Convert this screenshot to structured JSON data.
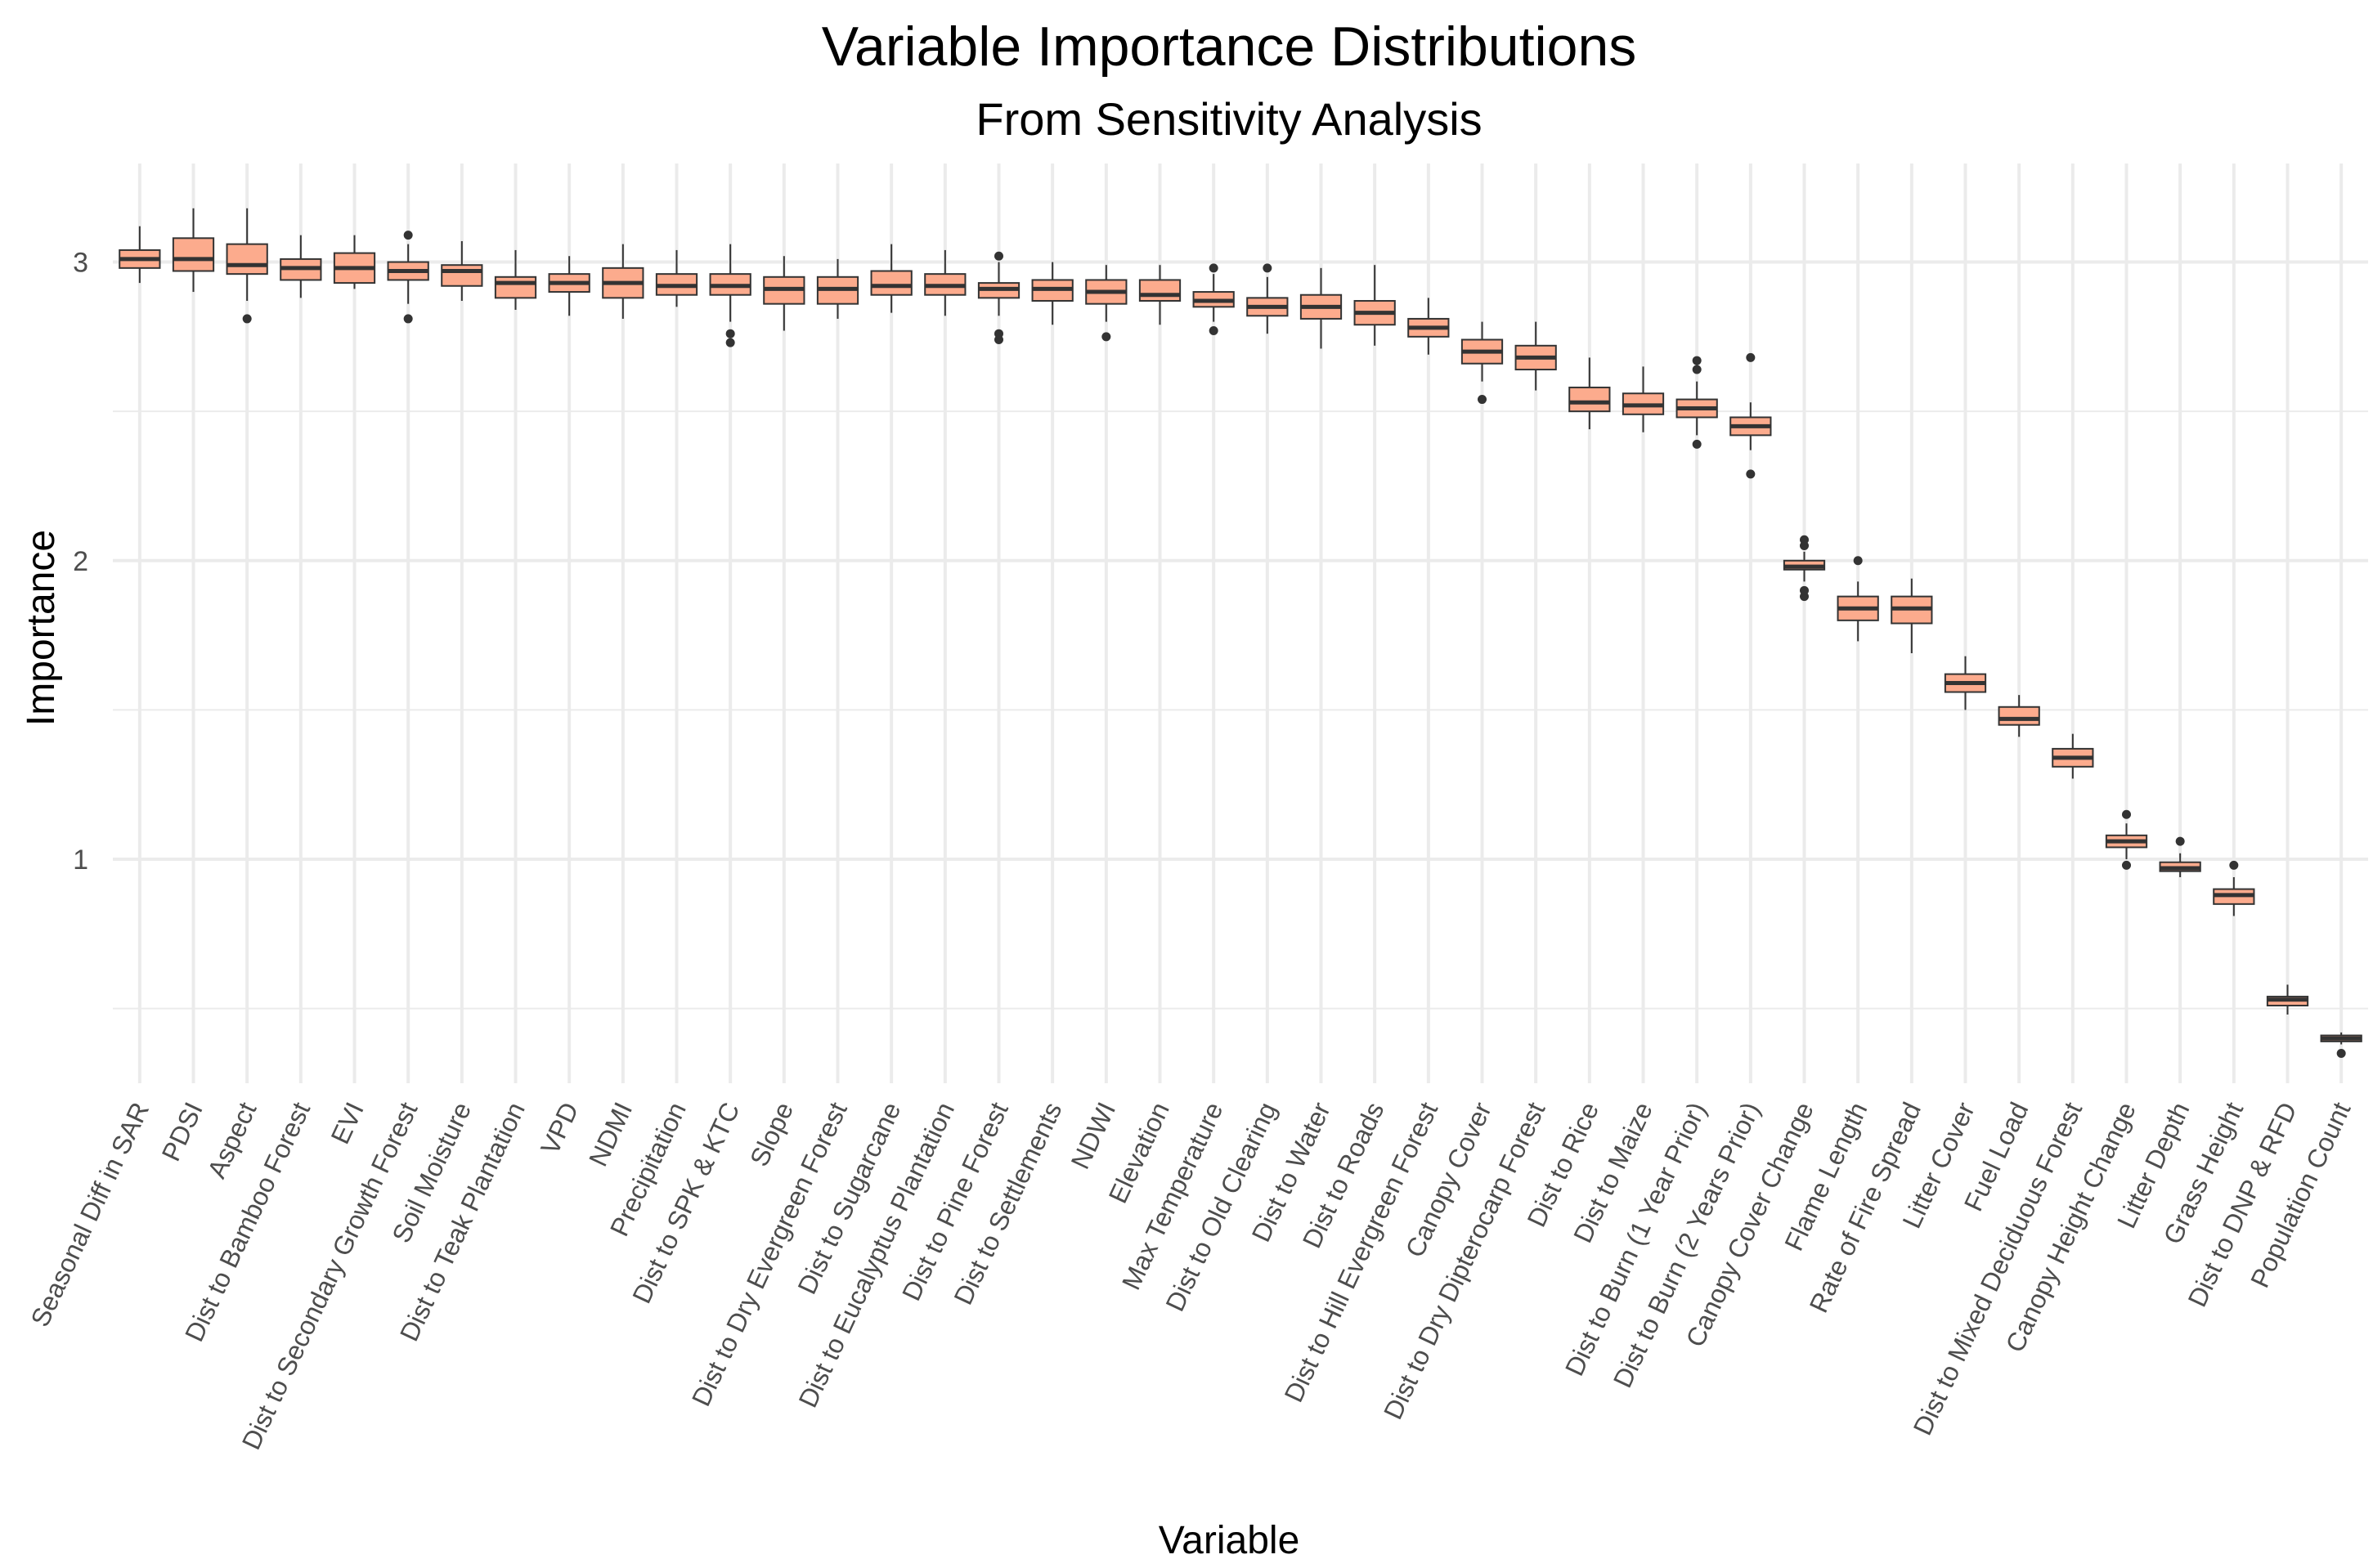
{
  "chart_data": {
    "type": "boxplot",
    "title": "Variable Importance Distributions",
    "subtitle": "From Sensitivity Analysis",
    "xlabel": "Variable",
    "ylabel": "Importance",
    "ylim": [
      0.25,
      3.33
    ],
    "yticks": [
      1,
      2,
      3
    ],
    "grid": true,
    "colors": {
      "box_fill": "#fcab8d",
      "box_stroke": "#333333",
      "grid": "#ebebeb",
      "median": "#333333"
    },
    "categories": [
      "Seasonal Diff in SAR",
      "PDSI",
      "Aspect",
      "Dist to Bamboo Forest",
      "EVI",
      "Dist to Secondary Growth Forest",
      "Soil Moisture",
      "Dist to Teak Plantation",
      "VPD",
      "NDMI",
      "Precipitation",
      "Dist to SPK & KTC",
      "Slope",
      "Dist to Dry Evergreen Forest",
      "Dist to Sugarcane",
      "Dist to Eucalyptus Plantation",
      "Dist to Pine Forest",
      "Dist to Settlements",
      "NDWI",
      "Elevation",
      "Max Temperature",
      "Dist to Old Clearing",
      "Dist to Water",
      "Dist to Roads",
      "Dist to Hill Evergreen Forest",
      "Canopy Cover",
      "Dist to Dry Dipterocarp Forest",
      "Dist to Rice",
      "Dist to Maize",
      "Dist to Burn (1 Year Prior)",
      "Dist to Burn (2 Years Prior)",
      "Canopy Cover Change",
      "Flame Length",
      "Rate of Fire Spread",
      "Litter Cover",
      "Fuel Load",
      "Dist to Mixed Deciduous Forest",
      "Canopy Height Change",
      "Litter Depth",
      "Grass Height",
      "Dist to DNP & RFD",
      "Population Count"
    ],
    "boxes": [
      {
        "min": 2.93,
        "q1": 2.98,
        "median": 3.01,
        "q3": 3.04,
        "max": 3.12,
        "outliers": []
      },
      {
        "min": 2.9,
        "q1": 2.97,
        "median": 3.01,
        "q3": 3.08,
        "max": 3.18,
        "outliers": []
      },
      {
        "min": 2.87,
        "q1": 2.96,
        "median": 2.99,
        "q3": 3.06,
        "max": 3.18,
        "outliers": [
          2.81
        ]
      },
      {
        "min": 2.88,
        "q1": 2.94,
        "median": 2.98,
        "q3": 3.01,
        "max": 3.09,
        "outliers": []
      },
      {
        "min": 2.91,
        "q1": 2.93,
        "median": 2.98,
        "q3": 3.03,
        "max": 3.09,
        "outliers": []
      },
      {
        "min": 2.86,
        "q1": 2.94,
        "median": 2.97,
        "q3": 3.0,
        "max": 3.06,
        "outliers": [
          2.81,
          3.09
        ]
      },
      {
        "min": 2.87,
        "q1": 2.92,
        "median": 2.97,
        "q3": 2.99,
        "max": 3.07,
        "outliers": []
      },
      {
        "min": 2.84,
        "q1": 2.88,
        "median": 2.93,
        "q3": 2.95,
        "max": 3.04,
        "outliers": []
      },
      {
        "min": 2.82,
        "q1": 2.9,
        "median": 2.93,
        "q3": 2.96,
        "max": 3.02,
        "outliers": []
      },
      {
        "min": 2.81,
        "q1": 2.88,
        "median": 2.93,
        "q3": 2.98,
        "max": 3.06,
        "outliers": []
      },
      {
        "min": 2.85,
        "q1": 2.89,
        "median": 2.92,
        "q3": 2.96,
        "max": 3.04,
        "outliers": []
      },
      {
        "min": 2.8,
        "q1": 2.89,
        "median": 2.92,
        "q3": 2.96,
        "max": 3.06,
        "outliers": [
          2.73,
          2.76
        ]
      },
      {
        "min": 2.77,
        "q1": 2.86,
        "median": 2.91,
        "q3": 2.95,
        "max": 3.02,
        "outliers": []
      },
      {
        "min": 2.81,
        "q1": 2.86,
        "median": 2.91,
        "q3": 2.95,
        "max": 3.01,
        "outliers": []
      },
      {
        "min": 2.83,
        "q1": 2.89,
        "median": 2.92,
        "q3": 2.97,
        "max": 3.06,
        "outliers": []
      },
      {
        "min": 2.82,
        "q1": 2.89,
        "median": 2.92,
        "q3": 2.96,
        "max": 3.04,
        "outliers": []
      },
      {
        "min": 2.82,
        "q1": 2.88,
        "median": 2.91,
        "q3": 2.93,
        "max": 3.0,
        "outliers": [
          2.74,
          2.76,
          3.02
        ]
      },
      {
        "min": 2.79,
        "q1": 2.87,
        "median": 2.91,
        "q3": 2.94,
        "max": 3.0,
        "outliers": []
      },
      {
        "min": 2.8,
        "q1": 2.86,
        "median": 2.9,
        "q3": 2.94,
        "max": 2.99,
        "outliers": [
          2.75
        ]
      },
      {
        "min": 2.79,
        "q1": 2.87,
        "median": 2.89,
        "q3": 2.94,
        "max": 2.99,
        "outliers": []
      },
      {
        "min": 2.8,
        "q1": 2.85,
        "median": 2.87,
        "q3": 2.9,
        "max": 2.96,
        "outliers": [
          2.77,
          2.98
        ]
      },
      {
        "min": 2.76,
        "q1": 2.82,
        "median": 2.85,
        "q3": 2.88,
        "max": 2.95,
        "outliers": [
          2.98
        ]
      },
      {
        "min": 2.71,
        "q1": 2.81,
        "median": 2.85,
        "q3": 2.89,
        "max": 2.98,
        "outliers": []
      },
      {
        "min": 2.72,
        "q1": 2.79,
        "median": 2.83,
        "q3": 2.87,
        "max": 2.99,
        "outliers": []
      },
      {
        "min": 2.69,
        "q1": 2.75,
        "median": 2.78,
        "q3": 2.81,
        "max": 2.88,
        "outliers": []
      },
      {
        "min": 2.6,
        "q1": 2.66,
        "median": 2.7,
        "q3": 2.74,
        "max": 2.8,
        "outliers": [
          2.54
        ]
      },
      {
        "min": 2.57,
        "q1": 2.64,
        "median": 2.68,
        "q3": 2.72,
        "max": 2.8,
        "outliers": []
      },
      {
        "min": 2.44,
        "q1": 2.5,
        "median": 2.53,
        "q3": 2.58,
        "max": 2.68,
        "outliers": []
      },
      {
        "min": 2.43,
        "q1": 2.49,
        "median": 2.52,
        "q3": 2.56,
        "max": 2.65,
        "outliers": []
      },
      {
        "min": 2.42,
        "q1": 2.48,
        "median": 2.51,
        "q3": 2.54,
        "max": 2.6,
        "outliers": [
          2.39,
          2.64,
          2.67
        ]
      },
      {
        "min": 2.37,
        "q1": 2.42,
        "median": 2.45,
        "q3": 2.48,
        "max": 2.53,
        "outliers": [
          2.29,
          2.68
        ]
      },
      {
        "min": 1.93,
        "q1": 1.97,
        "median": 1.98,
        "q3": 2.0,
        "max": 2.03,
        "outliers": [
          1.88,
          1.9,
          2.05,
          2.07
        ]
      },
      {
        "min": 1.73,
        "q1": 1.8,
        "median": 1.84,
        "q3": 1.88,
        "max": 1.93,
        "outliers": [
          2.0
        ]
      },
      {
        "min": 1.69,
        "q1": 1.79,
        "median": 1.84,
        "q3": 1.88,
        "max": 1.94,
        "outliers": []
      },
      {
        "min": 1.5,
        "q1": 1.56,
        "median": 1.59,
        "q3": 1.62,
        "max": 1.68,
        "outliers": []
      },
      {
        "min": 1.41,
        "q1": 1.45,
        "median": 1.47,
        "q3": 1.51,
        "max": 1.55,
        "outliers": []
      },
      {
        "min": 1.27,
        "q1": 1.31,
        "median": 1.34,
        "q3": 1.37,
        "max": 1.42,
        "outliers": []
      },
      {
        "min": 1.0,
        "q1": 1.04,
        "median": 1.06,
        "q3": 1.08,
        "max": 1.12,
        "outliers": [
          0.98,
          1.15
        ]
      },
      {
        "min": 0.94,
        "q1": 0.96,
        "median": 0.97,
        "q3": 0.99,
        "max": 1.02,
        "outliers": [
          1.06
        ]
      },
      {
        "min": 0.81,
        "q1": 0.85,
        "median": 0.88,
        "q3": 0.9,
        "max": 0.94,
        "outliers": [
          0.98
        ]
      },
      {
        "min": 0.48,
        "q1": 0.51,
        "median": 0.53,
        "q3": 0.54,
        "max": 0.58,
        "outliers": []
      },
      {
        "min": 0.38,
        "q1": 0.39,
        "median": 0.4,
        "q3": 0.41,
        "max": 0.42,
        "outliers": [
          0.35
        ]
      }
    ]
  }
}
